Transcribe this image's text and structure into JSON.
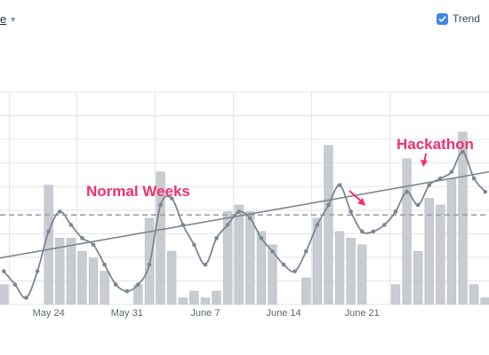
{
  "controls": {
    "dropdown_label": "e",
    "trend_label": "Trend",
    "trend_checked": true
  },
  "colors": {
    "bar": "#c8ccd1",
    "bar_stroke": "#b5bac0",
    "line": "#7d8690",
    "trend": "#7d8690",
    "average": "#9aa2aa",
    "annotation": "#f0306f",
    "grid": "#e2e5e8",
    "checkbox": "#3f86e8"
  },
  "chart_data": {
    "type": "bar",
    "x_tick_labels": [
      "May 24",
      "May 31",
      "June 7",
      "June 14",
      "June 21"
    ],
    "series": [
      {
        "values": [
          3,
          0,
          0,
          0,
          18,
          10,
          10,
          8,
          7,
          5,
          0,
          0,
          3,
          13,
          20,
          8,
          1,
          2,
          1,
          2,
          14,
          15,
          14,
          11,
          9,
          0,
          0,
          4,
          13,
          24,
          11,
          10,
          9,
          0,
          0,
          3,
          22,
          8,
          16,
          15,
          19,
          26,
          3,
          1
        ]
      },
      {
        "values": [
          5,
          3,
          1,
          5,
          11,
          14,
          12,
          10,
          9,
          6,
          3,
          2,
          3,
          6,
          15,
          16,
          12,
          9,
          6,
          10,
          12,
          14,
          13,
          10,
          8,
          6,
          5,
          8,
          12,
          15,
          18,
          14,
          11,
          11,
          12,
          14,
          17,
          15,
          18,
          19,
          20,
          23,
          19,
          17
        ]
      }
    ],
    "trend_line": {
      "start": 7,
      "end": 20
    },
    "average_value": 13.5,
    "ylim": [
      0,
      32
    ],
    "grid": true
  },
  "annotations": [
    {
      "text": "Normal Weeks"
    },
    {
      "text": "Hackathon"
    }
  ]
}
